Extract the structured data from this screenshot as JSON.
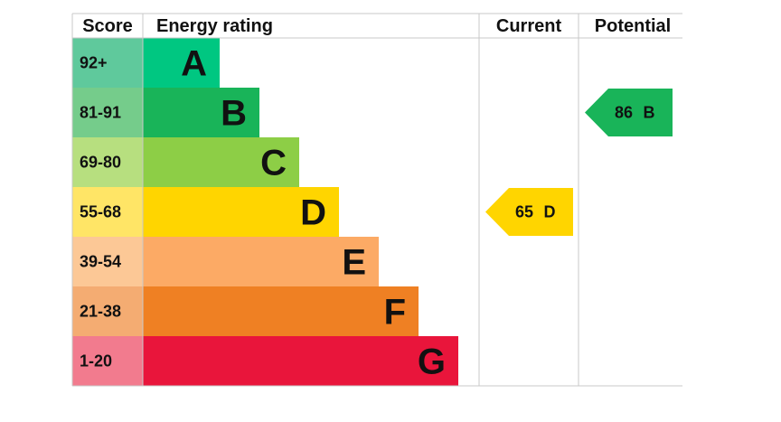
{
  "header": {
    "score": "Score",
    "rating": "Energy rating",
    "current": "Current",
    "potential": "Potential"
  },
  "bands": [
    {
      "score": "92+",
      "letter": "A",
      "color": "#00c781",
      "score_color": "#5fc99c"
    },
    {
      "score": "81-91",
      "letter": "B",
      "color": "#19b459",
      "score_color": "#75cc8b"
    },
    {
      "score": "69-80",
      "letter": "C",
      "color": "#8dce46",
      "score_color": "#b7df7f"
    },
    {
      "score": "55-68",
      "letter": "D",
      "color": "#ffd500",
      "score_color": "#ffe566"
    },
    {
      "score": "39-54",
      "letter": "E",
      "color": "#fcaa65",
      "score_color": "#fcc896"
    },
    {
      "score": "21-38",
      "letter": "F",
      "color": "#ef8023",
      "score_color": "#f4ac72"
    },
    {
      "score": "1-20",
      "letter": "G",
      "color": "#e9153b",
      "score_color": "#f27b8e"
    }
  ],
  "current": {
    "value": 65,
    "letter": "D"
  },
  "potential": {
    "value": 86,
    "letter": "B"
  }
}
